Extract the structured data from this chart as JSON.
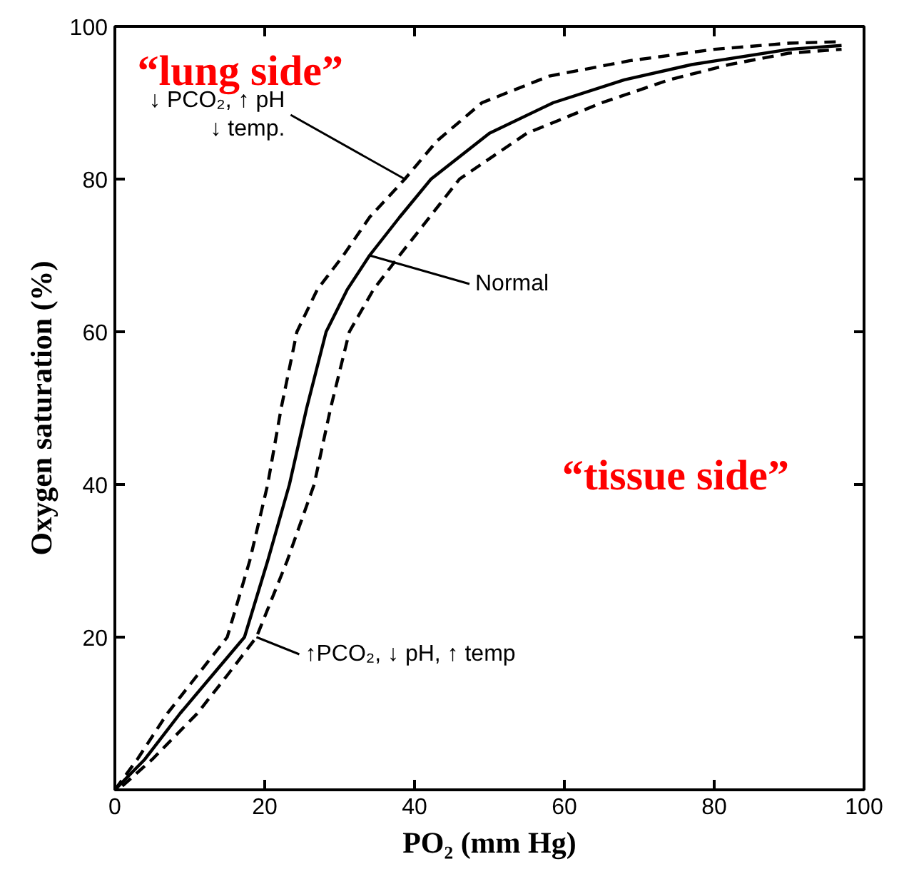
{
  "chart_data": {
    "type": "line",
    "xlabel": "PO₂ (mm Hg)",
    "ylabel": "Oxygen saturation (%)",
    "xlim": [
      0,
      100
    ],
    "ylim": [
      0,
      100
    ],
    "xticks": [
      0,
      20,
      40,
      60,
      80,
      100
    ],
    "yticks": [
      20,
      40,
      60,
      80,
      100
    ],
    "grid": false,
    "marker": "none",
    "series": [
      {
        "color": "#000000",
        "line_style": "dashed",
        "x": [
          0,
          3,
          7,
          11,
          15,
          18,
          20.4,
          22.2,
          24.3,
          27,
          30.5,
          34,
          38.7,
          43,
          49,
          58,
          68.7,
          80,
          90,
          97
        ],
        "values": [
          0,
          4,
          10,
          15,
          20,
          30,
          40,
          50,
          60,
          65.5,
          70,
          75,
          80,
          85,
          90,
          93.5,
          95.5,
          97,
          97.8,
          98
        ]
      },
      {
        "color": "#000000",
        "line_style": "solid",
        "x": [
          0,
          4,
          8.7,
          13,
          17.3,
          20.4,
          23.3,
          25.6,
          28.2,
          31,
          34,
          38,
          42.2,
          50,
          58.5,
          68,
          77,
          90,
          97
        ],
        "values": [
          0,
          4,
          10,
          15,
          20,
          30,
          40,
          50,
          60,
          65.5,
          70,
          75,
          80,
          86,
          90,
          93,
          95,
          97,
          97.5
        ]
      },
      {
        "color": "#000000",
        "line_style": "dashed",
        "x": [
          1,
          5,
          11,
          15,
          18.9,
          23,
          26.6,
          28.8,
          31.3,
          34.5,
          38,
          42,
          46,
          55,
          65,
          74,
          82,
          90,
          97
        ],
        "values": [
          0.5,
          4,
          10,
          15,
          20,
          30,
          40,
          50,
          60,
          65.5,
          70,
          75,
          80,
          86,
          90,
          93,
          95,
          96.5,
          97
        ]
      }
    ],
    "annotations": [
      "“lung side”",
      {
        "text": "↓ PCO₂, ↑ pH\n↓ temp.",
        "x": 38.7,
        "y": 80
      },
      {
        "text": "Normal",
        "x": 34,
        "y": 70
      },
      {
        "text": "↑PCO₂, ↓ pH, ↑ temp",
        "x": 18.9,
        "y": 20
      },
      "“tissue side”"
    ]
  }
}
